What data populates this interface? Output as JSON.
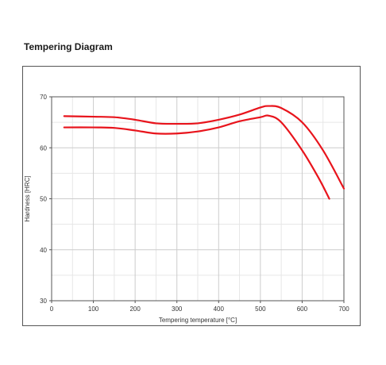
{
  "page": {
    "title": "Tempering Diagram"
  },
  "chart_data": {
    "type": "line",
    "title": "",
    "xlabel": "Tempering temperature [°C]",
    "ylabel": "Hardness [HRC]",
    "xlim": [
      0,
      700
    ],
    "ylim": [
      30,
      70
    ],
    "xticks": [
      0,
      100,
      200,
      300,
      400,
      500,
      600,
      700
    ],
    "yticks": [
      30,
      40,
      50,
      60,
      70
    ],
    "x_minor_step": 50,
    "y_minor_step": 5,
    "grid": true,
    "legend": "none",
    "line_color": "#e8141c",
    "series": [
      {
        "x": [
          30,
          100,
          150,
          200,
          250,
          300,
          350,
          400,
          450,
          500,
          520,
          550,
          600,
          650,
          700
        ],
        "y": [
          66.2,
          66.1,
          66.0,
          65.5,
          64.8,
          64.7,
          64.8,
          65.5,
          66.5,
          67.9,
          68.2,
          67.8,
          65.0,
          59.5,
          52.0
        ]
      },
      {
        "x": [
          30,
          100,
          150,
          200,
          250,
          300,
          350,
          400,
          450,
          500,
          520,
          550,
          600,
          640,
          665
        ],
        "y": [
          64.0,
          64.0,
          63.9,
          63.4,
          62.8,
          62.8,
          63.2,
          64.0,
          65.2,
          66.0,
          66.3,
          65.0,
          59.5,
          54.0,
          50.0
        ]
      }
    ]
  }
}
